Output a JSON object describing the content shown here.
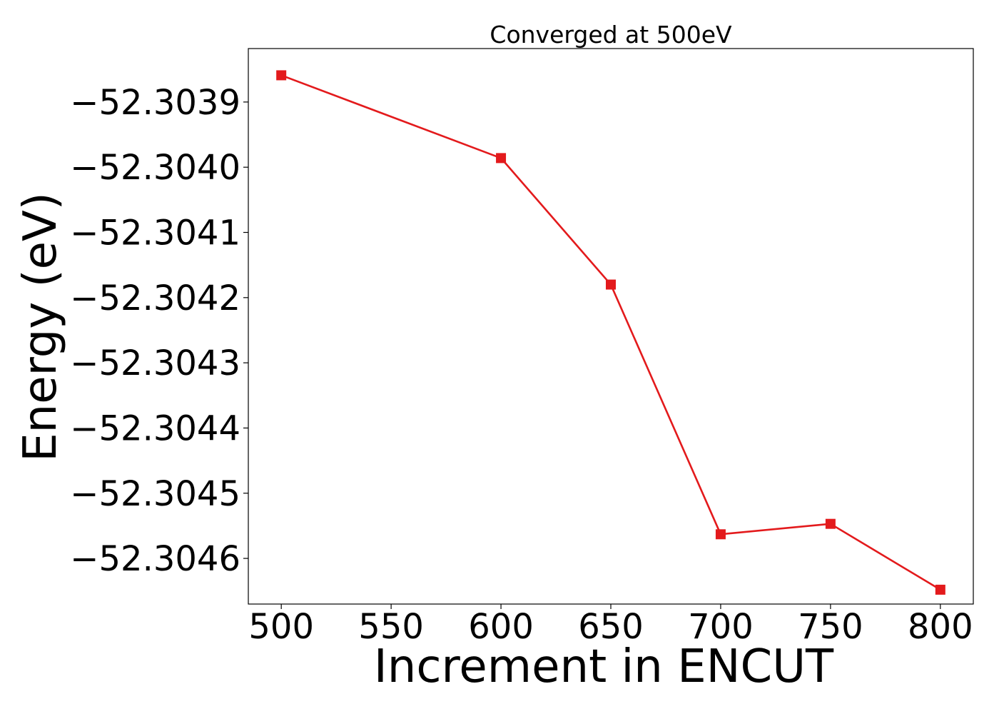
{
  "chart_data": {
    "type": "line",
    "title": "Converged at 500eV",
    "xlabel": "Increment in ENCUT",
    "ylabel": "Energy (eV)",
    "x": [
      500,
      600,
      650,
      700,
      750,
      800
    ],
    "series": [
      {
        "values": [
          -52.303859,
          -52.303986,
          -52.30418,
          -52.304563,
          -52.304547,
          -52.304648
        ],
        "color": "#e31a1c",
        "marker": "square"
      }
    ],
    "xlim": [
      485,
      815
    ],
    "ylim": [
      -52.30467,
      -52.303818
    ],
    "xticks": [
      500,
      550,
      600,
      650,
      700,
      750,
      800
    ],
    "xtick_labels": [
      "500",
      "550",
      "600",
      "650",
      "700",
      "750",
      "800"
    ],
    "yticks": [
      -52.3039,
      -52.304,
      -52.3041,
      -52.3042,
      -52.3043,
      -52.3044,
      -52.3045,
      -52.3046
    ],
    "ytick_labels": [
      "−52.3039",
      "−52.3040",
      "−52.3041",
      "−52.3042",
      "−52.3043",
      "−52.3044",
      "−52.3045",
      "−52.3046"
    ],
    "grid": false,
    "legend": false
  }
}
